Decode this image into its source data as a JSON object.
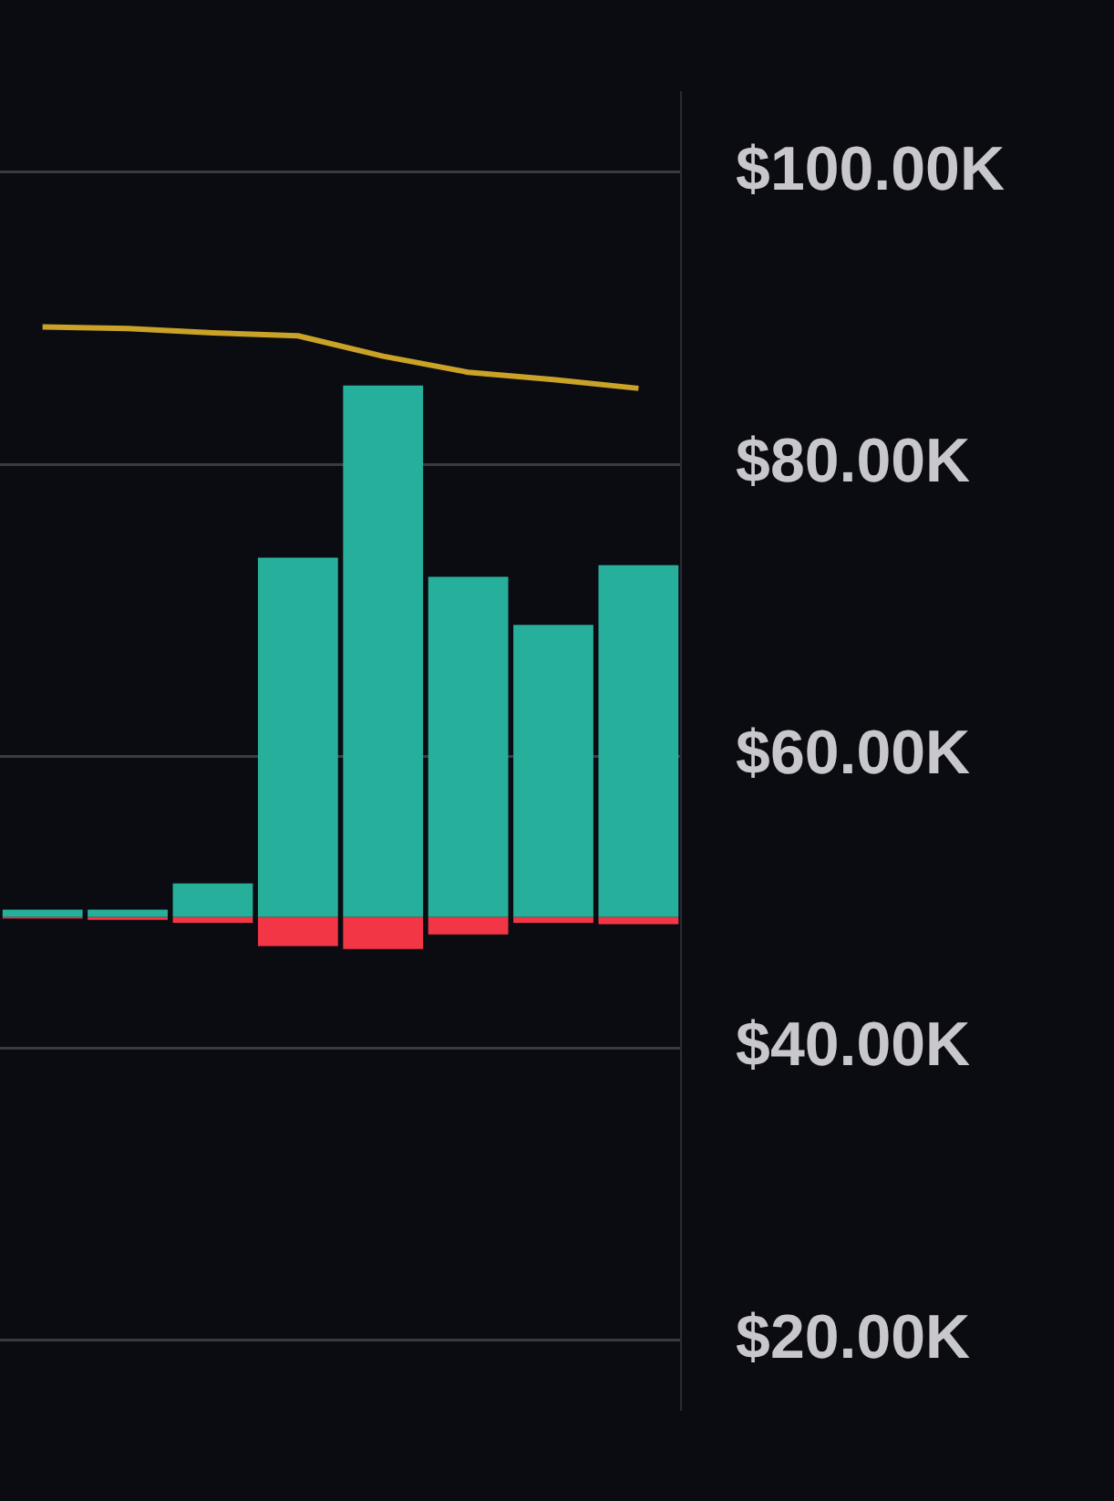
{
  "chart_data": {
    "type": "bar",
    "categories": [
      null,
      null,
      null,
      null,
      null,
      null,
      null,
      null
    ],
    "series": [
      {
        "color": "#26b09b",
        "base": [
          49.0,
          49.0,
          49.0,
          49.0,
          49.0,
          49.0,
          49.0,
          49.0
        ],
        "values": [
          0.5,
          0.5,
          2.3,
          24.6,
          36.4,
          23.3,
          20.0,
          24.1
        ]
      },
      {
        "color": "#f23645",
        "base": [
          49.0,
          49.0,
          49.0,
          49.0,
          49.0,
          49.0,
          49.0,
          49.0
        ],
        "values": [
          -0.1,
          -0.2,
          -0.4,
          -2.0,
          -2.2,
          -1.2,
          -0.4,
          -0.5
        ]
      },
      {
        "type": "line",
        "color": "#c9a227",
        "values": [
          89.4,
          89.3,
          89.0,
          88.8,
          87.4,
          86.3,
          85.8,
          85.2
        ]
      }
    ],
    "ylim": [
      15.3,
      105.5
    ],
    "yticks": [
      {
        "value": 20,
        "label": "$20.00K"
      },
      {
        "value": 40,
        "label": "$40.00K"
      },
      {
        "value": 60,
        "label": "$60.00K"
      },
      {
        "value": 80,
        "label": "$80.00K"
      },
      {
        "value": 100,
        "label": "$100.00K"
      }
    ],
    "grid": "y",
    "legend": false,
    "tick_labels": "y",
    "marker": "none"
  }
}
